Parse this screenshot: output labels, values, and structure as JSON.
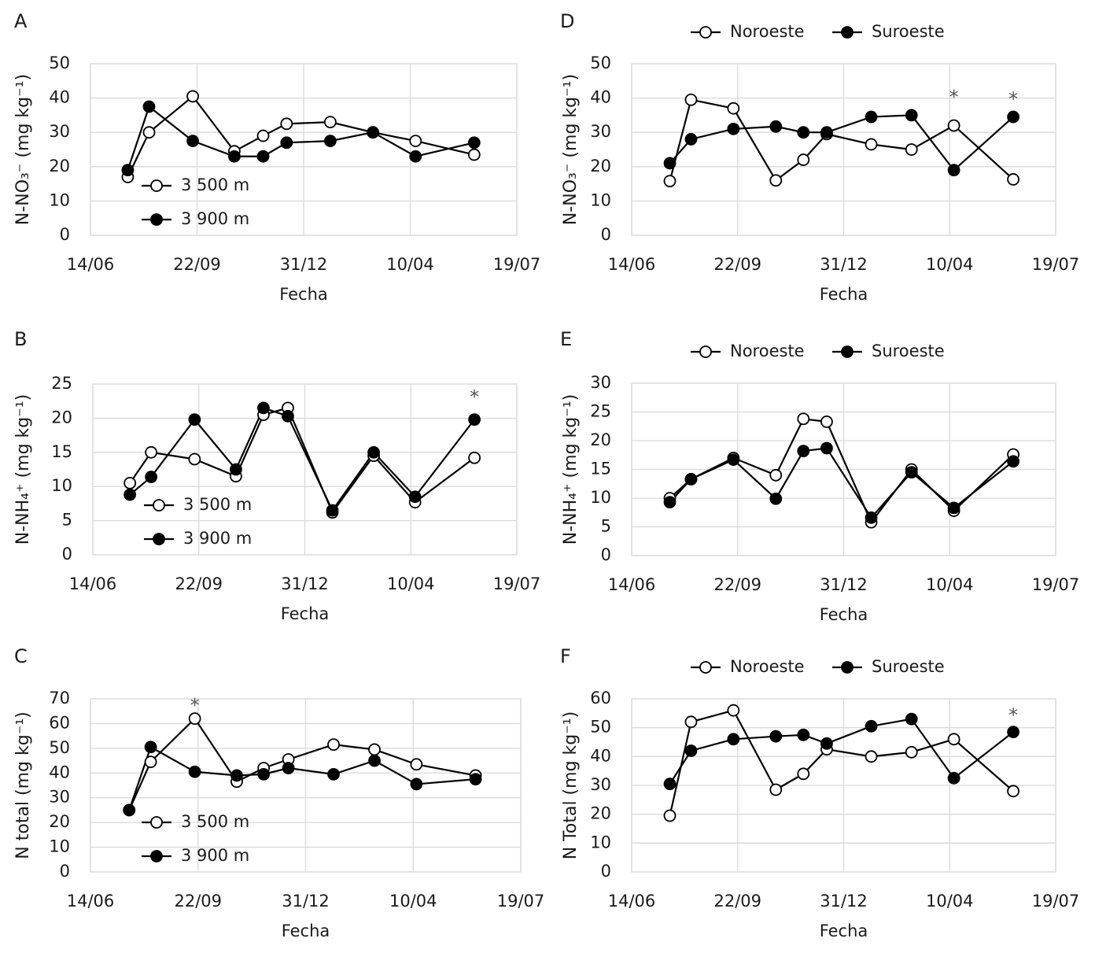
{
  "chart_data": [
    {
      "type": "line",
      "label": "A",
      "y_label": "N-NO₃⁻ (mg kg⁻¹)",
      "x_label": "Fecha",
      "xlim": [
        0,
        400
      ],
      "xticks": [
        {
          "value": 0,
          "label": "14/06"
        },
        {
          "value": 100,
          "label": "22/09"
        },
        {
          "value": 200,
          "label": "31/12"
        },
        {
          "value": 300,
          "label": "10/04"
        },
        {
          "value": 400,
          "label": "19/07"
        }
      ],
      "ylim": [
        0,
        50
      ],
      "yticks": [
        0,
        10,
        20,
        30,
        40,
        50
      ],
      "grid": true,
      "legend": "lower left",
      "x": [
        35,
        55,
        96,
        135,
        162,
        184,
        225,
        265,
        305,
        360
      ],
      "series": [
        {
          "name": "3 500 m",
          "color": "#000000",
          "marker_fill": "#ffffff",
          "values": [
            17,
            30,
            40.5,
            24.5,
            29,
            32.5,
            33,
            30,
            27.5,
            23.5
          ]
        },
        {
          "name": "3 900 m",
          "color": "#000000",
          "marker_fill": "#000000",
          "values": [
            19,
            37.5,
            27.5,
            23,
            23,
            27,
            27.5,
            30,
            23,
            27
          ]
        }
      ],
      "annotations": []
    },
    {
      "type": "line",
      "label": "B",
      "y_label": "N-NH₄⁺ (mg kg⁻¹)",
      "x_label": "Fecha",
      "xlim": [
        0,
        400
      ],
      "xticks": [
        {
          "value": 0,
          "label": "14/06"
        },
        {
          "value": 100,
          "label": "22/09"
        },
        {
          "value": 200,
          "label": "31/12"
        },
        {
          "value": 300,
          "label": "10/04"
        },
        {
          "value": 400,
          "label": "19/07"
        }
      ],
      "ylim": [
        0,
        25
      ],
      "yticks": [
        0,
        5,
        10,
        15,
        20,
        25
      ],
      "grid": true,
      "legend": "lower left",
      "x": [
        35,
        55,
        96,
        135,
        161,
        184,
        226,
        265,
        304,
        360
      ],
      "series": [
        {
          "name": "3 500 m",
          "color": "#000000",
          "marker_fill": "#ffffff",
          "values": [
            10.5,
            15,
            14,
            11.5,
            20.5,
            21.5,
            6.2,
            14.5,
            7.7,
            14.2
          ]
        },
        {
          "name": "3 900 m",
          "color": "#000000",
          "marker_fill": "#000000",
          "values": [
            8.8,
            11.4,
            19.8,
            12.5,
            21.5,
            20.3,
            6.5,
            15,
            8.5,
            19.8
          ]
        }
      ],
      "annotations": [
        {
          "text": "*",
          "x": 360,
          "y": 23
        }
      ]
    },
    {
      "type": "line",
      "label": "C",
      "y_label": "N total (mg kg⁻¹)",
      "x_label": "Fecha",
      "xlim": [
        0,
        400
      ],
      "xticks": [
        {
          "value": 0,
          "label": "14/06"
        },
        {
          "value": 100,
          "label": "22/09"
        },
        {
          "value": 200,
          "label": "31/12"
        },
        {
          "value": 300,
          "label": "10/04"
        },
        {
          "value": 400,
          "label": "19/07"
        }
      ],
      "ylim": [
        0,
        70
      ],
      "yticks": [
        0,
        10,
        20,
        30,
        40,
        50,
        60,
        70
      ],
      "grid": true,
      "legend": "lower left",
      "x": [
        36,
        56,
        97,
        136,
        161,
        184,
        226,
        264,
        303,
        358
      ],
      "series": [
        {
          "name": "3 500 m",
          "color": "#000000",
          "marker_fill": "#ffffff",
          "values": [
            25,
            44.5,
            62,
            36.5,
            42,
            45.5,
            51.5,
            49.5,
            43.5,
            39
          ]
        },
        {
          "name": "3 900 m",
          "color": "#000000",
          "marker_fill": "#000000",
          "values": [
            25,
            50.5,
            40.5,
            39,
            39.5,
            42,
            39.5,
            45,
            35.5,
            37.5
          ]
        }
      ],
      "annotations": [
        {
          "text": "*",
          "x": 97,
          "y": 67
        }
      ]
    },
    {
      "type": "line",
      "label": "D",
      "y_label": "N-NO₃⁻ (mg kg⁻¹)",
      "x_label": "Fecha",
      "xlim": [
        0,
        400
      ],
      "xticks": [
        {
          "value": 0,
          "label": "14/06"
        },
        {
          "value": 100,
          "label": "22/09"
        },
        {
          "value": 200,
          "label": "31/12"
        },
        {
          "value": 300,
          "label": "10/04"
        },
        {
          "value": 400,
          "label": "19/07"
        }
      ],
      "ylim": [
        0,
        50
      ],
      "yticks": [
        0,
        10,
        20,
        30,
        40,
        50
      ],
      "grid": true,
      "legend": "top",
      "x": [
        36,
        56,
        96,
        136,
        162,
        184,
        226,
        264,
        304,
        360
      ],
      "series": [
        {
          "name": "Noroeste",
          "color": "#000000",
          "marker_fill": "#ffffff",
          "values": [
            15.8,
            39.5,
            37,
            16,
            22,
            29.5,
            26.5,
            25,
            32,
            16.3
          ]
        },
        {
          "name": "Suroeste",
          "color": "#000000",
          "marker_fill": "#000000",
          "values": [
            21,
            28,
            31,
            31.7,
            30,
            30,
            34.5,
            35,
            19,
            34.5
          ]
        }
      ],
      "annotations": [
        {
          "text": "*",
          "x": 304,
          "y": 40
        },
        {
          "text": "*",
          "x": 360,
          "y": 39.5
        }
      ]
    },
    {
      "type": "line",
      "label": "E",
      "y_label": "N-NH₄⁺ (mg kg⁻¹)",
      "x_label": "Fecha",
      "xlim": [
        0,
        400
      ],
      "xticks": [
        {
          "value": 0,
          "label": "14/06"
        },
        {
          "value": 100,
          "label": "22/09"
        },
        {
          "value": 200,
          "label": "31/12"
        },
        {
          "value": 300,
          "label": "10/04"
        },
        {
          "value": 400,
          "label": "19/07"
        }
      ],
      "ylim": [
        0,
        30
      ],
      "yticks": [
        0,
        5,
        10,
        15,
        20,
        25,
        30
      ],
      "grid": true,
      "legend": "top",
      "x": [
        36,
        56,
        96,
        136,
        162,
        184,
        226,
        264,
        304,
        360
      ],
      "series": [
        {
          "name": "Noroeste",
          "color": "#000000",
          "marker_fill": "#ffffff",
          "values": [
            10,
            13.3,
            17,
            14,
            23.8,
            23.3,
            5.8,
            15,
            7.8,
            17.6
          ]
        },
        {
          "name": "Suroeste",
          "color": "#000000",
          "marker_fill": "#000000",
          "values": [
            9.3,
            13.3,
            16.7,
            9.9,
            18.2,
            18.7,
            6.6,
            14.5,
            8.3,
            16.4
          ]
        }
      ],
      "annotations": []
    },
    {
      "type": "line",
      "label": "F",
      "y_label": "N Total (mg kg⁻¹)",
      "x_label": "Fecha",
      "xlim": [
        0,
        400
      ],
      "xticks": [
        {
          "value": 0,
          "label": "14/06"
        },
        {
          "value": 100,
          "label": "22/09"
        },
        {
          "value": 200,
          "label": "31/12"
        },
        {
          "value": 300,
          "label": "10/04"
        },
        {
          "value": 400,
          "label": "19/07"
        }
      ],
      "ylim": [
        0,
        60
      ],
      "yticks": [
        0,
        10,
        20,
        30,
        40,
        50,
        60
      ],
      "grid": true,
      "legend": "top",
      "x": [
        36,
        56,
        96,
        136,
        162,
        184,
        226,
        264,
        304,
        360
      ],
      "series": [
        {
          "name": "Noroeste",
          "color": "#000000",
          "marker_fill": "#ffffff",
          "values": [
            19.5,
            52,
            56,
            28.5,
            34,
            42.5,
            40,
            41.5,
            46,
            28
          ]
        },
        {
          "name": "Suroeste",
          "color": "#000000",
          "marker_fill": "#000000",
          "values": [
            30.5,
            42,
            46,
            47,
            47.5,
            44.5,
            50.5,
            53,
            32.5,
            48.5
          ]
        }
      ],
      "annotations": [
        {
          "text": "*",
          "x": 360,
          "y": 54
        }
      ]
    }
  ]
}
